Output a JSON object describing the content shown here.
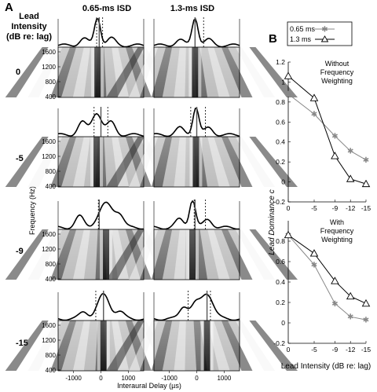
{
  "panel_a": {
    "letter": "A",
    "title_lines": [
      "Lead",
      "Intensity",
      "(dB re: lag)"
    ],
    "col_titles": [
      "0.65-ms ISD",
      "1.3-ms ISD"
    ],
    "row_labels": [
      "0",
      "-5",
      "-9",
      "-15"
    ],
    "y_axis_label": "Frequency (Hz)",
    "y_ticks": [
      "1600",
      "1200",
      "800",
      "400"
    ],
    "x_axis_label": "Interaural Delay (µs)",
    "x_ticks": [
      "-1000",
      "0",
      "1000"
    ]
  },
  "panel_b": {
    "letter": "B",
    "legend": [
      "0.65 ms",
      "1.3 ms"
    ],
    "y_label": "Lead Dominance c",
    "x_label": "Lead Intensity (dB re: lag)",
    "x_ticks": [
      "0",
      "-5",
      "-9",
      "-12",
      "-15"
    ]
  },
  "chart_data": [
    {
      "type": "line",
      "title": "Without Frequency Weighting",
      "title_lines": [
        "Without",
        "Frequency",
        "Weighting"
      ],
      "x": [
        0,
        -5,
        -9,
        -12,
        -15
      ],
      "ylim": [
        -0.2,
        1.2
      ],
      "yticks": [
        -0.2,
        0,
        0.2,
        0.4,
        0.6,
        0.8,
        1,
        1.2
      ],
      "series": [
        {
          "name": "0.65 ms",
          "marker": "star",
          "color": "#888888",
          "values": [
            0.88,
            0.68,
            0.46,
            0.31,
            0.22
          ]
        },
        {
          "name": "1.3 ms",
          "marker": "triangle",
          "color": "#000000",
          "values": [
            1.06,
            0.84,
            0.26,
            0.03,
            -0.02
          ]
        }
      ]
    },
    {
      "type": "line",
      "title": "With Frequency Weighting",
      "title_lines": [
        "With",
        "Frequency",
        "Weighting"
      ],
      "x": [
        0,
        -5,
        -9,
        -12,
        -15
      ],
      "ylim": [
        -0.2,
        1.0
      ],
      "yticks": [
        -0.2,
        0,
        0.2,
        0.4,
        0.6,
        0.8
      ],
      "series": [
        {
          "name": "0.65 ms",
          "marker": "star",
          "color": "#888888",
          "values": [
            0.86,
            0.57,
            0.19,
            0.06,
            0.03
          ]
        },
        {
          "name": "1.3 ms",
          "marker": "triangle",
          "color": "#000000",
          "values": [
            0.86,
            0.68,
            0.41,
            0.26,
            0.19
          ]
        }
      ]
    }
  ]
}
